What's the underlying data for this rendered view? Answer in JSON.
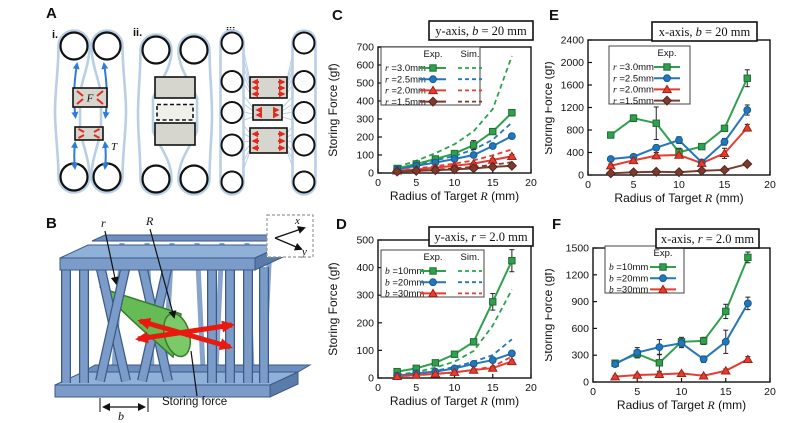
{
  "panels": {
    "A": {
      "label": "A",
      "subs": [
        "i.",
        "ii.",
        "iii."
      ],
      "force_label": "F",
      "tension_label": "T"
    },
    "B": {
      "label": "B",
      "radius_small": "r",
      "radius_large": "R",
      "base_width": "b",
      "storing_force": "Storing force",
      "axis_x": "x",
      "axis_y": "y"
    }
  },
  "colors": {
    "green": "#2fa04c",
    "green_edge": "#1e6e34",
    "blue": "#2377bd",
    "blue_edge": "#155a92",
    "red": "#e53d30",
    "red_edge": "#a32014",
    "maroon": "#7e3a2e",
    "maroon_edge": "#54261e",
    "band_blue": "#b9cfe6",
    "structure_blue": "#7b9cc9",
    "target_green": "#66bb55",
    "force_red": "#e8190f",
    "rect_gray": "#d6d6ce"
  },
  "chart_data": [
    {
      "id": "C",
      "panel_label": "C",
      "type": "line",
      "title": "y-axis, b = 20 mm",
      "title_parts": {
        "pre": "y-axis, ",
        "var": "b",
        "post": " = 20 mm"
      },
      "xlabel": "Radius of Target R (mm)",
      "xlabel_parts": {
        "pre": "Radius of Target ",
        "var": "R",
        "post": " (mm)"
      },
      "ylabel": "Storing Force (gf)",
      "xlim": [
        0,
        20
      ],
      "ylim": [
        0,
        700
      ],
      "xticks": [
        0,
        5,
        10,
        15,
        20
      ],
      "yticks": [
        0,
        100,
        200,
        300,
        400,
        500,
        600,
        700
      ],
      "legend": {
        "exp_header": "Exp.",
        "sim_header": "Sim.",
        "position": "top-left"
      },
      "x": [
        2.5,
        5,
        7.5,
        10,
        12.5,
        15,
        17.5
      ],
      "series": [
        {
          "group": "r=3.0mm",
          "kind": "exp",
          "label_var": "r",
          "label_rest": " =3.0mm",
          "marker": "square",
          "color": "#2fa04c",
          "edge": "#1e6e34",
          "values": [
            25,
            50,
            78,
            108,
            155,
            230,
            335
          ],
          "errors": [
            6,
            6,
            8,
            10,
            25,
            12,
            18
          ]
        },
        {
          "group": "r=3.0mm",
          "kind": "sim",
          "color": "#2fa04c",
          "values": [
            33,
            68,
            110,
            160,
            232,
            355,
            650
          ]
        },
        {
          "group": "r=2.5mm",
          "kind": "exp",
          "label_var": "r",
          "label_rest": " =2.5mm",
          "marker": "circle",
          "color": "#2377bd",
          "edge": "#155a92",
          "values": [
            20,
            40,
            58,
            78,
            100,
            150,
            205
          ],
          "errors": [
            5,
            5,
            6,
            6,
            8,
            10,
            14
          ]
        },
        {
          "group": "r=2.5mm",
          "kind": "sim",
          "color": "#2377bd",
          "values": [
            23,
            46,
            70,
            95,
            130,
            185,
            280
          ]
        },
        {
          "group": "r=2.0mm",
          "kind": "exp",
          "label_var": "r",
          "label_rest": " =2.0mm",
          "marker": "triangle",
          "color": "#e53d30",
          "edge": "#a32014",
          "values": [
            12,
            20,
            30,
            40,
            52,
            72,
            93
          ],
          "errors": [
            4,
            4,
            4,
            5,
            6,
            8,
            10
          ]
        },
        {
          "group": "r=2.0mm",
          "kind": "sim",
          "color": "#e53d30",
          "values": [
            13,
            25,
            38,
            52,
            70,
            98,
            131
          ]
        },
        {
          "group": "r=1.5mm",
          "kind": "exp",
          "label_var": "r",
          "label_rest": " =1.5mm",
          "marker": "diamond",
          "color": "#7e3a2e",
          "edge": "#54261e",
          "values": [
            8,
            12,
            16,
            20,
            26,
            34,
            40
          ],
          "errors": [
            3,
            3,
            3,
            3,
            4,
            4,
            5
          ]
        },
        {
          "group": "r=1.5mm",
          "kind": "sim",
          "color": "#7e3a2e",
          "values": [
            8,
            13,
            19,
            26,
            34,
            45,
            60
          ]
        }
      ]
    },
    {
      "id": "D",
      "panel_label": "D",
      "type": "line",
      "title": "y-axis, r = 2.0 mm",
      "title_parts": {
        "pre": "y-axis, ",
        "var": "r",
        "post": " = 2.0 mm"
      },
      "xlabel": "Radius of Target R (mm)",
      "xlabel_parts": {
        "pre": "Radius of Target ",
        "var": "R",
        "post": " (mm)"
      },
      "ylabel": "Storing Force (gf)",
      "xlim": [
        0,
        20
      ],
      "ylim": [
        0,
        500
      ],
      "xticks": [
        0,
        5,
        10,
        15,
        20
      ],
      "yticks": [
        0,
        100,
        200,
        300,
        400,
        500
      ],
      "legend": {
        "exp_header": "Exp.",
        "sim_header": "Sim.",
        "position": "top-left"
      },
      "x": [
        2.5,
        5,
        7.5,
        10,
        12.5,
        15,
        17.5
      ],
      "series": [
        {
          "group": "b=10mm",
          "kind": "exp",
          "label_var": "b",
          "label_rest": " =10mm",
          "marker": "square",
          "color": "#2fa04c",
          "edge": "#1e6e34",
          "values": [
            23,
            35,
            55,
            86,
            131,
            276,
            425
          ],
          "errors": [
            3,
            4,
            5,
            7,
            10,
            30,
            40
          ]
        },
        {
          "group": "b=10mm",
          "kind": "sim",
          "color": "#2fa04c",
          "values": [
            12,
            21,
            38,
            59,
            98,
            190,
            320
          ]
        },
        {
          "group": "b=20mm",
          "kind": "exp",
          "label_var": "b",
          "label_rest": " =20mm",
          "marker": "circle",
          "color": "#2377bd",
          "edge": "#155a92",
          "values": [
            8,
            17,
            23,
            35,
            51,
            65,
            89
          ],
          "errors": [
            2,
            3,
            3,
            4,
            5,
            6,
            8
          ]
        },
        {
          "group": "b=20mm",
          "kind": "sim",
          "color": "#2377bd",
          "values": [
            9,
            16,
            26,
            40,
            59,
            83,
            140
          ]
        },
        {
          "group": "b=30mm",
          "kind": "exp",
          "label_var": "b",
          "label_rest": " =30mm",
          "marker": "triangle",
          "color": "#e53d30",
          "edge": "#a32014",
          "values": [
            6,
            11,
            15,
            21,
            29,
            36,
            60
          ],
          "errors": [
            2,
            2,
            3,
            3,
            4,
            4,
            6
          ]
        },
        {
          "group": "b=30mm",
          "kind": "sim",
          "color": "#e53d30",
          "values": [
            5,
            10,
            14,
            20,
            30,
            41,
            78
          ]
        }
      ]
    },
    {
      "id": "E",
      "panel_label": "E",
      "type": "line",
      "title": "x-axis, b = 20 mm",
      "title_parts": {
        "pre": "x-axis, ",
        "var": "b",
        "post": " = 20 mm"
      },
      "xlabel": "Radius of Target R (mm)",
      "xlabel_parts": {
        "pre": "Radius of Target ",
        "var": "R",
        "post": " (mm)"
      },
      "ylabel": "Storing Force (gf)",
      "xlim": [
        0,
        20
      ],
      "ylim": [
        0,
        2400
      ],
      "xticks": [
        0,
        5,
        10,
        15,
        20
      ],
      "yticks": [
        0,
        400,
        800,
        1200,
        1600,
        2000,
        2400
      ],
      "legend": {
        "exp_header": "Exp.",
        "position": "top-left"
      },
      "x": [
        2.5,
        5,
        7.5,
        10,
        12.5,
        15,
        17.5
      ],
      "series": [
        {
          "group": "r=3.0mm",
          "kind": "exp",
          "label_var": "r",
          "label_rest": " =3.0mm",
          "marker": "square",
          "color": "#2fa04c",
          "edge": "#1e6e34",
          "values": [
            710,
            1010,
            920,
            405,
            505,
            830,
            1720
          ],
          "errors": [
            40,
            60,
            290,
            70,
            40,
            50,
            150
          ]
        },
        {
          "group": "r=2.5mm",
          "kind": "exp",
          "label_var": "r",
          "label_rest": " =2.5mm",
          "marker": "circle",
          "color": "#2377bd",
          "edge": "#155a92",
          "values": [
            285,
            325,
            485,
            620,
            225,
            590,
            1155
          ],
          "errors": [
            30,
            40,
            50,
            60,
            30,
            60,
            90
          ]
        },
        {
          "group": "r=2.0mm",
          "kind": "exp",
          "label_var": "r",
          "label_rest": " =2.0mm",
          "marker": "triangle",
          "color": "#e53d30",
          "edge": "#a32014",
          "values": [
            165,
            260,
            345,
            355,
            210,
            385,
            840
          ],
          "errors": [
            30,
            40,
            55,
            50,
            30,
            90,
            60
          ]
        },
        {
          "group": "r=1.5mm",
          "kind": "exp",
          "label_var": "r",
          "label_rest": " =1.5mm",
          "marker": "diamond",
          "color": "#7e3a2e",
          "edge": "#54261e",
          "values": [
            30,
            48,
            58,
            50,
            75,
            90,
            195
          ],
          "errors": [
            10,
            10,
            10,
            10,
            12,
            15,
            25
          ]
        }
      ]
    },
    {
      "id": "F",
      "panel_label": "F",
      "type": "line",
      "title": "x-axis, r = 2.0 mm",
      "title_parts": {
        "pre": "x-axis, ",
        "var": "r",
        "post": " = 2.0 mm"
      },
      "xlabel": "Radius of Target R (mm)",
      "xlabel_parts": {
        "pre": "Radius of Target ",
        "var": "R",
        "post": " (mm)"
      },
      "ylabel": "Storing Force (gf)",
      "xlim": [
        0,
        20
      ],
      "ylim": [
        0,
        1500
      ],
      "xticks": [
        0,
        5,
        10,
        15,
        20
      ],
      "yticks": [
        0,
        300,
        600,
        900,
        1200,
        1500
      ],
      "legend": {
        "exp_header": "Exp.",
        "position": "top-left"
      },
      "x": [
        2.5,
        5,
        7.5,
        10,
        12.5,
        15,
        17.5
      ],
      "series": [
        {
          "group": "b=10mm",
          "kind": "exp",
          "label_var": "b",
          "label_rest": " =10mm",
          "marker": "square",
          "color": "#2fa04c",
          "edge": "#1e6e34",
          "values": [
            210,
            315,
            215,
            450,
            460,
            790,
            1395
          ],
          "errors": [
            35,
            45,
            95,
            50,
            40,
            80,
            60
          ]
        },
        {
          "group": "b=20mm",
          "kind": "exp",
          "label_var": "b",
          "label_rest": " =20mm",
          "marker": "circle",
          "color": "#2377bd",
          "edge": "#155a92",
          "values": [
            200,
            330,
            390,
            435,
            255,
            450,
            880
          ],
          "errors": [
            25,
            55,
            85,
            50,
            35,
            130,
            70
          ]
        },
        {
          "group": "b=30mm",
          "kind": "exp",
          "label_var": "b",
          "label_rest": " =30mm",
          "marker": "triangle",
          "color": "#e53d30",
          "edge": "#a32014",
          "values": [
            60,
            78,
            86,
            97,
            70,
            126,
            254
          ],
          "errors": [
            12,
            12,
            15,
            12,
            12,
            20,
            30
          ]
        }
      ]
    }
  ]
}
